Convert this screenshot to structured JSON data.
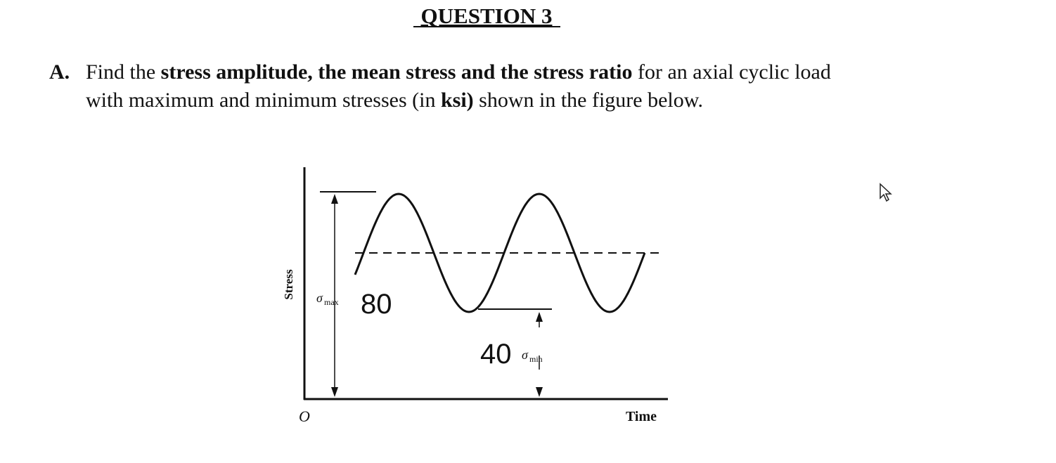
{
  "header": {
    "title": "QUESTION 3"
  },
  "question": {
    "label": "A.",
    "line1": [
      "Find the ",
      "stress amplitude, the mean stress and the stress ratio",
      " for an axial cyclic load"
    ],
    "line2": [
      "with maximum and minimum stresses (in ",
      "ksi)",
      " shown in the figure below."
    ]
  },
  "figure": {
    "y_axis_label": "Stress",
    "x_axis_label": "Time",
    "origin": "O",
    "max_symbol": "σ",
    "max_subscript": "max",
    "max_value": "80",
    "min_symbol": "σ",
    "min_subscript": "min",
    "min_value": "40"
  }
}
